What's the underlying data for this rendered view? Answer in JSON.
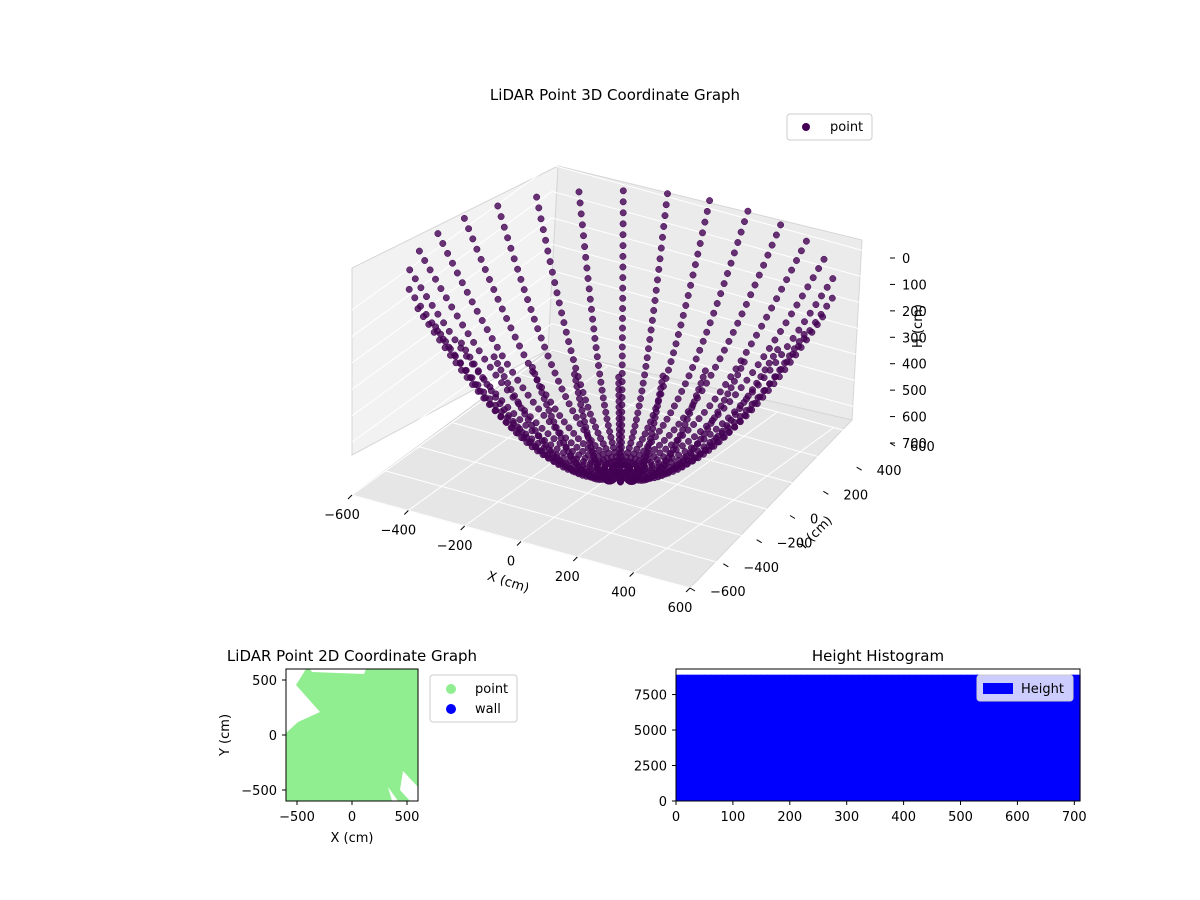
{
  "chart_data": [
    {
      "type": "scatter",
      "projection": "3d",
      "title": "LiDAR Point 3D Coordinate Graph",
      "xlabel": "X (cm)",
      "ylabel": "Y (cm)",
      "zlabel": "H (cm)",
      "xlim": [
        -600,
        600
      ],
      "ylim": [
        -600,
        600
      ],
      "zlim": [
        700,
        0
      ],
      "z_axis_inverted": true,
      "x_ticks": [
        "−600",
        "−400",
        "−200",
        "0",
        "200",
        "400",
        "600"
      ],
      "y_ticks": [
        "−600",
        "−400",
        "−200",
        "0",
        "200",
        "400",
        "600"
      ],
      "z_ticks": [
        "0",
        "100",
        "200",
        "300",
        "400",
        "500",
        "600",
        "700"
      ],
      "legend": {
        "entries": [
          "point"
        ],
        "location": "top-right"
      },
      "series": [
        {
          "name": "point",
          "color": "#440154",
          "pattern": "radial beams from origin, hemispherical sweep",
          "beam_azimuths_deg": [
            0,
            12,
            24,
            36,
            48,
            60,
            72,
            84,
            96,
            108,
            120,
            132,
            144,
            156,
            168,
            180,
            192,
            204,
            216,
            228,
            240,
            252,
            264,
            276,
            288,
            300,
            312,
            324,
            336,
            348
          ],
          "max_range_cm": 650,
          "max_height_cm": 700
        }
      ],
      "grid": true
    },
    {
      "type": "scatter",
      "title": "LiDAR Point 2D Coordinate Graph",
      "xlabel": "X (cm)",
      "ylabel": "Y (cm)",
      "xlim": [
        -600,
        600
      ],
      "ylim": [
        -600,
        600
      ],
      "x_ticks": [
        "−500",
        "0",
        "500"
      ],
      "y_ticks": [
        "−500",
        "0",
        "500"
      ],
      "legend": {
        "entries": [
          "point",
          "wall"
        ],
        "location": "outside-right"
      },
      "series": [
        {
          "name": "point",
          "color": "#90ee90",
          "coverage": "dense fill of plot area"
        },
        {
          "name": "wall",
          "color": "#0000ff"
        }
      ]
    },
    {
      "type": "bar",
      "subtype": "histogram",
      "title": "Height Histogram",
      "xlim": [
        0,
        710
      ],
      "ylim": [
        0,
        9300
      ],
      "x_ticks": [
        "0",
        "100",
        "200",
        "300",
        "400",
        "500",
        "600",
        "700"
      ],
      "y_ticks": [
        "0",
        "2500",
        "5000",
        "7500"
      ],
      "legend": {
        "entries": [
          "Height"
        ],
        "location": "top-right"
      },
      "series": [
        {
          "name": "Height",
          "color": "#0000ff",
          "bin_range": [
            0,
            710
          ],
          "count_per_bin": 8900
        }
      ]
    }
  ]
}
